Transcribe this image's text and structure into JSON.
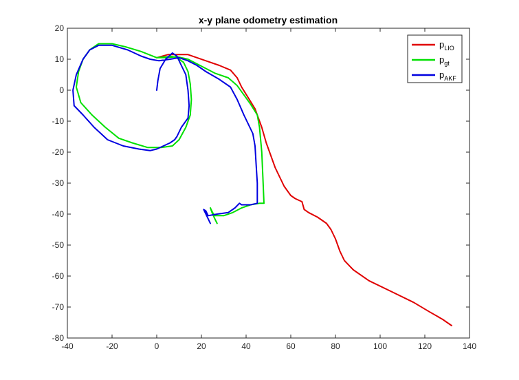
{
  "chart_data": {
    "type": "line",
    "title": "x-y plane odometry estimation",
    "xlabel": "",
    "ylabel": "",
    "xlim": [
      -40,
      140
    ],
    "ylim": [
      -80,
      20
    ],
    "x_ticks": [
      -40,
      -20,
      0,
      20,
      40,
      60,
      80,
      100,
      120,
      140
    ],
    "y_ticks": [
      20,
      10,
      0,
      -10,
      -20,
      -30,
      -40,
      -50,
      -60,
      -70,
      -80
    ],
    "grid": false,
    "legend_position": "top-right",
    "series": [
      {
        "name": "p_LIO",
        "legend_main": "p",
        "legend_sub": "LIO",
        "color": "#e00000",
        "points": [
          [
            0,
            10.5
          ],
          [
            5,
            11.5
          ],
          [
            10,
            11.5
          ],
          [
            14,
            11.5
          ],
          [
            18,
            10.5
          ],
          [
            22,
            9.5
          ],
          [
            28,
            8
          ],
          [
            33,
            6.5
          ],
          [
            36,
            4
          ],
          [
            38,
            1
          ],
          [
            41,
            -2.5
          ],
          [
            44,
            -6
          ],
          [
            47,
            -12
          ],
          [
            49,
            -17
          ],
          [
            51,
            -21
          ],
          [
            53,
            -25
          ],
          [
            55,
            -28
          ],
          [
            57,
            -31
          ],
          [
            60,
            -34
          ],
          [
            62,
            -35
          ],
          [
            65,
            -36
          ],
          [
            66,
            -38.5
          ],
          [
            68,
            -39.5
          ],
          [
            72,
            -41
          ],
          [
            76,
            -43
          ],
          [
            78,
            -45
          ],
          [
            80,
            -48
          ],
          [
            82,
            -52
          ],
          [
            84,
            -55
          ],
          [
            88,
            -58
          ],
          [
            95,
            -61.5
          ],
          [
            105,
            -65
          ],
          [
            115,
            -68.5
          ],
          [
            122,
            -71.5
          ],
          [
            128,
            -74
          ],
          [
            132,
            -76
          ]
        ]
      },
      {
        "name": "p_gt",
        "legend_main": "p",
        "legend_sub": "gt",
        "color": "#00e000",
        "points": [
          [
            0,
            10.5
          ],
          [
            4,
            10.5
          ],
          [
            9,
            10.8
          ],
          [
            14,
            10
          ],
          [
            18,
            8.5
          ],
          [
            22,
            7
          ],
          [
            26,
            5.5
          ],
          [
            32,
            4
          ],
          [
            36,
            1.5
          ],
          [
            39,
            -1.5
          ],
          [
            42,
            -4.5
          ],
          [
            45,
            -8
          ],
          [
            46,
            -12
          ],
          [
            47,
            -20
          ],
          [
            47.5,
            -28
          ],
          [
            48,
            -36.5
          ],
          [
            46,
            -36.5
          ],
          [
            42,
            -37
          ],
          [
            38,
            -38
          ],
          [
            34,
            -39.5
          ],
          [
            30,
            -40.5
          ],
          [
            26,
            -40.5
          ],
          [
            25,
            -39.5
          ],
          [
            24,
            -38
          ],
          [
            25,
            -40
          ],
          [
            26,
            -41.5
          ],
          [
            27,
            -43
          ]
        ],
        "points_loop": [
          [
            6,
            11
          ],
          [
            9,
            10.5
          ],
          [
            12,
            9
          ],
          [
            14,
            6
          ],
          [
            15,
            2
          ],
          [
            15.5,
            -3
          ],
          [
            15,
            -8
          ],
          [
            13,
            -12
          ],
          [
            10,
            -16
          ],
          [
            7,
            -18
          ],
          [
            2,
            -18.5
          ],
          [
            -4,
            -18.5
          ],
          [
            -11,
            -17
          ],
          [
            -17,
            -15.5
          ],
          [
            -23,
            -12
          ],
          [
            -29,
            -8
          ],
          [
            -34,
            -4
          ],
          [
            -36,
            1
          ],
          [
            -35,
            6
          ],
          [
            -33,
            10
          ],
          [
            -30,
            13
          ],
          [
            -26,
            15
          ],
          [
            -20,
            15
          ],
          [
            -14,
            14
          ],
          [
            -7,
            12.5
          ],
          [
            0,
            10.5
          ],
          [
            5,
            10.8
          ]
        ]
      },
      {
        "name": "p_AKF",
        "legend_main": "p",
        "legend_sub": "AKF",
        "color": "#0000e0",
        "points": [
          [
            0,
            0
          ],
          [
            0.5,
            3
          ],
          [
            1.5,
            7
          ],
          [
            4,
            10
          ],
          [
            7,
            12
          ],
          [
            9,
            11
          ],
          [
            11,
            8
          ],
          [
            13,
            5
          ],
          [
            14,
            0
          ],
          [
            14.5,
            -5
          ],
          [
            14,
            -9
          ],
          [
            11,
            -12
          ],
          [
            9,
            -15
          ],
          [
            8,
            -16
          ],
          [
            6,
            -17
          ],
          [
            3,
            -18
          ],
          [
            0,
            -19
          ],
          [
            -3,
            -19.5
          ],
          [
            -8,
            -19
          ],
          [
            -15,
            -18
          ],
          [
            -22,
            -16
          ],
          [
            -28,
            -12
          ],
          [
            -33,
            -8
          ],
          [
            -37,
            -5
          ],
          [
            -37.5,
            0
          ],
          [
            -36,
            5
          ],
          [
            -33,
            10
          ],
          [
            -30,
            13
          ],
          [
            -26,
            14.5
          ],
          [
            -20,
            14.5
          ],
          [
            -13,
            13
          ],
          [
            -7,
            11
          ],
          [
            -3,
            10
          ],
          [
            1,
            9.5
          ],
          [
            6,
            10
          ],
          [
            10,
            10.5
          ],
          [
            14,
            9.5
          ],
          [
            18,
            8
          ],
          [
            22,
            6
          ],
          [
            28,
            3.5
          ],
          [
            33,
            1
          ],
          [
            36,
            -3
          ],
          [
            39,
            -8
          ],
          [
            41,
            -11
          ],
          [
            43,
            -14
          ],
          [
            44,
            -18
          ],
          [
            44.5,
            -24
          ],
          [
            45,
            -30
          ],
          [
            45,
            -36.5
          ],
          [
            42,
            -37
          ],
          [
            38,
            -37
          ],
          [
            37,
            -36.5
          ],
          [
            35,
            -38
          ],
          [
            32,
            -39.5
          ],
          [
            27,
            -40
          ],
          [
            23,
            -40.5
          ],
          [
            22,
            -39
          ],
          [
            21,
            -38.5
          ],
          [
            22,
            -40
          ],
          [
            23,
            -41.5
          ],
          [
            24,
            -43
          ]
        ]
      }
    ]
  }
}
